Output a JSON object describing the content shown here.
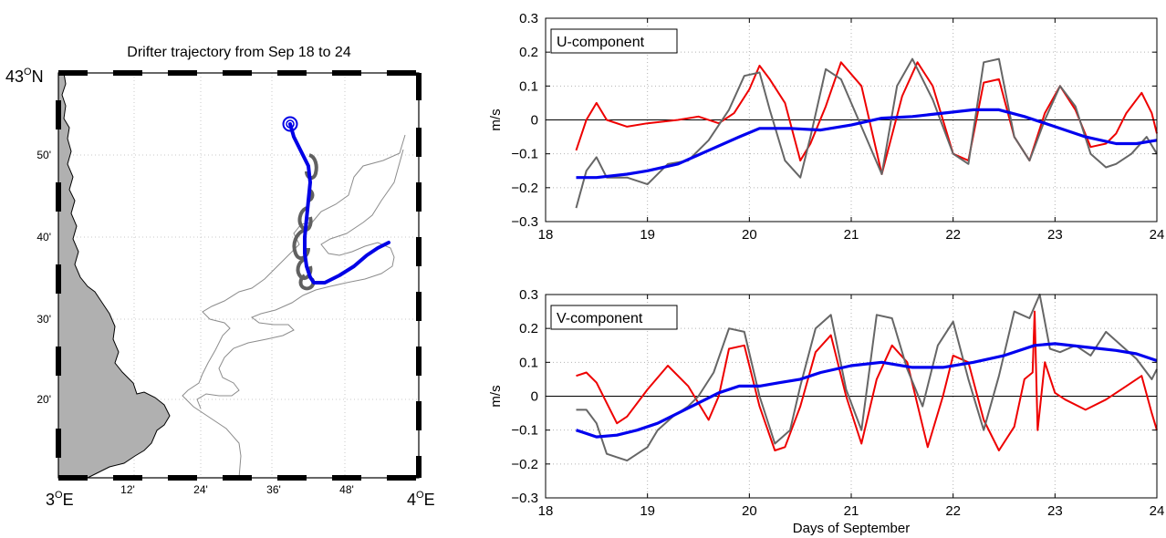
{
  "map": {
    "title": "Drifter trajectory from Sep 18 to 24",
    "lat_label_top": "43",
    "lat_label_unit": "N",
    "lon_label_left": "3",
    "lon_label_right": "4",
    "lon_unit": "E",
    "degree_symbol": "O",
    "x_ticks": [
      "12'",
      "24'",
      "36'",
      "48'"
    ],
    "y_ticks": [
      "50'",
      "40'",
      "30'",
      "20'"
    ],
    "land_color": "#b0b0b0",
    "trajectory_color": "#0000e6",
    "loops_color": "#606060"
  },
  "chart_data": [
    {
      "type": "line",
      "panel_label": "U-component",
      "ylabel": "m/s",
      "xlabel": "",
      "xlim": [
        18,
        24
      ],
      "ylim": [
        -0.3,
        0.3
      ],
      "x_ticks": [
        "18",
        "19",
        "20",
        "21",
        "22",
        "23",
        "24"
      ],
      "y_ticks": [
        "0.3",
        "0.2",
        "0.1",
        "0",
        "−0.1",
        "−0.2",
        "−0.3"
      ],
      "grid": true,
      "series": [
        {
          "color": "#ee0000",
          "x": [
            18.3,
            18.4,
            18.5,
            18.6,
            18.8,
            19.0,
            19.3,
            19.5,
            19.7,
            19.85,
            20.0,
            20.1,
            20.2,
            20.35,
            20.5,
            20.6,
            20.75,
            20.9,
            21.1,
            21.3,
            21.5,
            21.65,
            21.8,
            22.0,
            22.15,
            22.3,
            22.45,
            22.6,
            22.75,
            22.9,
            23.05,
            23.2,
            23.35,
            23.5,
            23.6,
            23.7,
            23.85,
            23.95,
            24.0
          ],
          "values": [
            -0.09,
            0.0,
            0.05,
            0.0,
            -0.02,
            -0.01,
            0.0,
            0.01,
            -0.01,
            0.02,
            0.09,
            0.16,
            0.12,
            0.05,
            -0.12,
            -0.07,
            0.04,
            0.17,
            0.1,
            -0.16,
            0.07,
            0.17,
            0.1,
            -0.1,
            -0.12,
            0.11,
            0.12,
            -0.05,
            -0.12,
            0.02,
            0.1,
            0.03,
            -0.08,
            -0.07,
            -0.04,
            0.02,
            0.08,
            0.02,
            -0.04
          ]
        },
        {
          "color": "#666666",
          "x": [
            18.3,
            18.4,
            18.5,
            18.6,
            18.8,
            19.0,
            19.2,
            19.4,
            19.6,
            19.8,
            19.95,
            20.1,
            20.2,
            20.35,
            20.5,
            20.6,
            20.75,
            20.9,
            21.1,
            21.3,
            21.45,
            21.6,
            21.8,
            22.0,
            22.15,
            22.3,
            22.45,
            22.6,
            22.75,
            22.9,
            23.05,
            23.2,
            23.35,
            23.5,
            23.6,
            23.75,
            23.9,
            24.0
          ],
          "values": [
            -0.26,
            -0.15,
            -0.11,
            -0.17,
            -0.17,
            -0.19,
            -0.13,
            -0.12,
            -0.06,
            0.03,
            0.13,
            0.14,
            0.03,
            -0.12,
            -0.17,
            -0.05,
            0.15,
            0.12,
            -0.02,
            -0.16,
            0.1,
            0.18,
            0.06,
            -0.1,
            -0.13,
            0.17,
            0.18,
            -0.05,
            -0.12,
            0.0,
            0.1,
            0.04,
            -0.1,
            -0.14,
            -0.13,
            -0.1,
            -0.05,
            -0.1
          ]
        },
        {
          "color": "#0000ee",
          "x": [
            18.3,
            18.5,
            18.8,
            19.0,
            19.3,
            19.6,
            19.9,
            20.1,
            20.4,
            20.7,
            21.0,
            21.3,
            21.6,
            21.9,
            22.2,
            22.45,
            22.7,
            23.0,
            23.3,
            23.6,
            23.8,
            24.0
          ],
          "values": [
            -0.17,
            -0.17,
            -0.16,
            -0.15,
            -0.13,
            -0.09,
            -0.05,
            -0.025,
            -0.025,
            -0.03,
            -0.015,
            0.005,
            0.01,
            0.02,
            0.03,
            0.03,
            0.01,
            -0.02,
            -0.05,
            -0.07,
            -0.07,
            -0.06
          ]
        }
      ]
    },
    {
      "type": "line",
      "panel_label": "V-component",
      "ylabel": "m/s",
      "xlabel": "Days of September",
      "xlim": [
        18,
        24
      ],
      "ylim": [
        -0.3,
        0.3
      ],
      "x_ticks": [
        "18",
        "19",
        "20",
        "21",
        "22",
        "23",
        "24"
      ],
      "y_ticks": [
        "0.3",
        "0.2",
        "0.1",
        "0",
        "−0.1",
        "−0.2",
        "−0.3"
      ],
      "grid": true,
      "series": [
        {
          "color": "#ee0000",
          "x": [
            18.3,
            18.4,
            18.5,
            18.6,
            18.7,
            18.8,
            19.0,
            19.2,
            19.4,
            19.6,
            19.7,
            19.8,
            19.95,
            20.1,
            20.25,
            20.35,
            20.5,
            20.65,
            20.8,
            20.95,
            21.1,
            21.25,
            21.4,
            21.55,
            21.75,
            21.9,
            22.0,
            22.15,
            22.3,
            22.45,
            22.6,
            22.7,
            22.78,
            22.8,
            22.83,
            22.9,
            23.0,
            23.1,
            23.3,
            23.5,
            23.7,
            23.85,
            23.95,
            24.0
          ],
          "values": [
            0.06,
            0.07,
            0.04,
            -0.02,
            -0.08,
            -0.06,
            0.02,
            0.09,
            0.03,
            -0.07,
            0.0,
            0.14,
            0.15,
            -0.03,
            -0.16,
            -0.15,
            -0.03,
            0.13,
            0.18,
            0.0,
            -0.14,
            0.05,
            0.15,
            0.1,
            -0.15,
            0.0,
            0.12,
            0.1,
            -0.07,
            -0.16,
            -0.09,
            0.05,
            0.07,
            0.25,
            -0.1,
            0.1,
            0.01,
            -0.01,
            -0.04,
            -0.01,
            0.03,
            0.06,
            -0.05,
            -0.1
          ]
        },
        {
          "color": "#666666",
          "x": [
            18.3,
            18.4,
            18.5,
            18.6,
            18.7,
            18.8,
            18.9,
            19.0,
            19.1,
            19.25,
            19.4,
            19.5,
            19.65,
            19.8,
            19.95,
            20.1,
            20.25,
            20.4,
            20.5,
            20.65,
            20.8,
            20.95,
            21.1,
            21.25,
            21.4,
            21.55,
            21.7,
            21.85,
            22.0,
            22.15,
            22.3,
            22.45,
            22.6,
            22.75,
            22.85,
            22.95,
            23.05,
            23.2,
            23.35,
            23.5,
            23.65,
            23.8,
            23.95,
            24.0
          ],
          "values": [
            -0.04,
            -0.04,
            -0.08,
            -0.17,
            -0.18,
            -0.19,
            -0.17,
            -0.15,
            -0.1,
            -0.06,
            -0.03,
            0.0,
            0.07,
            0.2,
            0.19,
            0.0,
            -0.14,
            -0.1,
            0.03,
            0.2,
            0.24,
            0.02,
            -0.1,
            0.24,
            0.23,
            0.08,
            -0.03,
            0.15,
            0.22,
            0.05,
            -0.1,
            0.06,
            0.25,
            0.23,
            0.3,
            0.14,
            0.13,
            0.15,
            0.12,
            0.19,
            0.15,
            0.11,
            0.05,
            0.08
          ]
        },
        {
          "color": "#0000ee",
          "x": [
            18.3,
            18.5,
            18.7,
            18.9,
            19.1,
            19.3,
            19.5,
            19.7,
            19.9,
            20.1,
            20.3,
            20.5,
            20.7,
            21.0,
            21.3,
            21.6,
            21.9,
            22.2,
            22.5,
            22.8,
            23.0,
            23.3,
            23.6,
            23.8,
            24.0
          ],
          "values": [
            -0.1,
            -0.12,
            -0.115,
            -0.1,
            -0.08,
            -0.05,
            -0.02,
            0.01,
            0.03,
            0.03,
            0.04,
            0.05,
            0.07,
            0.09,
            0.1,
            0.085,
            0.085,
            0.1,
            0.12,
            0.15,
            0.155,
            0.145,
            0.135,
            0.125,
            0.105
          ]
        }
      ]
    }
  ]
}
